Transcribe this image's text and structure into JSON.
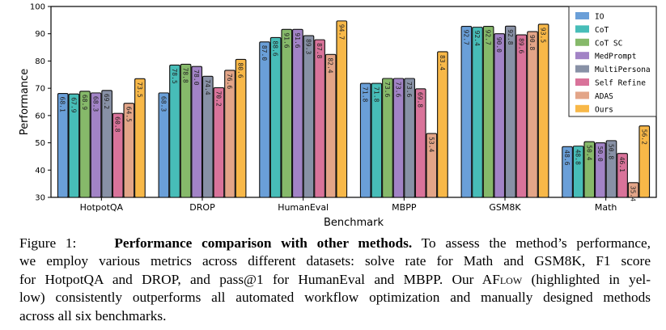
{
  "chart_data": {
    "type": "bar",
    "title": "",
    "xlabel": "Benchmark",
    "ylabel": "Performance",
    "ylim": [
      30,
      100
    ],
    "yticks": [
      30,
      40,
      50,
      60,
      70,
      80,
      90,
      100
    ],
    "grid": false,
    "legend_placement": "top-right",
    "categories": [
      "HotpotQA",
      "DROP",
      "HumanEval",
      "MBPP",
      "GSM8K",
      "Math"
    ],
    "series": [
      {
        "name": "IO",
        "color": "#6a9fd8",
        "values": [
          68.1,
          68.3,
          87.0,
          71.8,
          92.7,
          48.6
        ]
      },
      {
        "name": "CoT",
        "color": "#47bdb8",
        "values": [
          67.9,
          78.5,
          88.6,
          71.8,
          92.4,
          48.8
        ]
      },
      {
        "name": "CoT SC",
        "color": "#86b96a",
        "values": [
          68.9,
          78.8,
          91.6,
          73.6,
          92.7,
          50.4
        ]
      },
      {
        "name": "MedPrompt",
        "color": "#a283c6",
        "values": [
          68.3,
          78.0,
          91.6,
          73.6,
          90.0,
          50.0
        ]
      },
      {
        "name": "MultiPersona",
        "color": "#8891a6",
        "values": [
          69.2,
          74.4,
          89.3,
          73.6,
          92.8,
          50.8
        ]
      },
      {
        "name": "Self Refine",
        "color": "#d9739a",
        "values": [
          60.8,
          70.2,
          87.8,
          69.8,
          89.6,
          46.1
        ]
      },
      {
        "name": "ADAS",
        "color": "#e3a588",
        "values": [
          64.5,
          76.6,
          82.4,
          53.4,
          90.8,
          35.4
        ]
      },
      {
        "name": "Ours",
        "color": "#f8b848",
        "values": [
          73.5,
          80.6,
          94.7,
          83.4,
          93.5,
          56.2
        ]
      }
    ]
  },
  "caption": {
    "label": "Figure 1:",
    "bold": "Performance comparison with other methods.",
    "line1_rest": "To assess the method’s performance,",
    "line2": "we employ various metrics across different datasets: solve rate for Math and GSM8K, F1 score",
    "line3": "for HotpotQA and DROP, and pass@1 for HumanEval and MBPP. Our A",
    "line3_sc": "Flow",
    "line3_rest": "(highlighted in yel-",
    "line4": "low) consistently outperforms all automated workflow optimization and manually designed methods",
    "line5": "across all six benchmarks."
  }
}
